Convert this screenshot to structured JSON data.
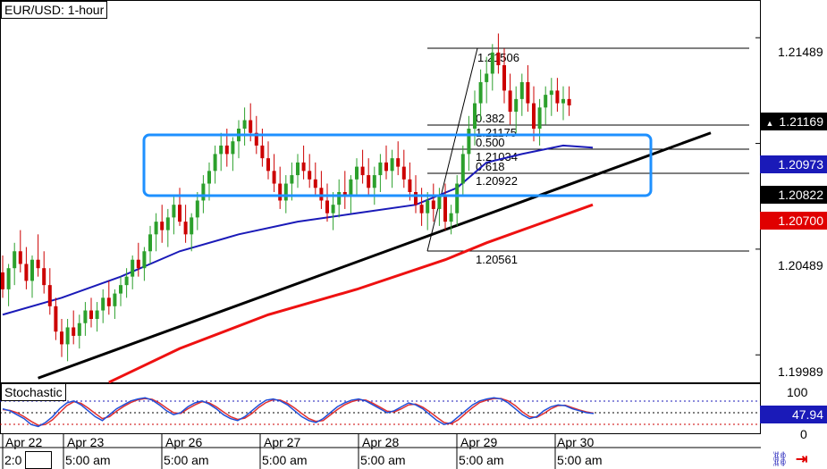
{
  "window_title": "EUR/USD: 1-hour",
  "indicator_label": "Stochastic",
  "colors": {
    "bull": "#2ca02c",
    "bear": "#cc0000",
    "ma_fast": "#1a1ab8",
    "ma_slow": "#ee1111",
    "trendline": "#000000",
    "box": "#1e90ff",
    "stoch_k": "#1f4fd8",
    "stoch_d": "#e03030",
    "tag_dark": "#000000",
    "tag_blue": "#1a1ab8",
    "tag_red": "#e00000"
  },
  "price_axis": {
    "labels": [
      "1.21489",
      "1.20489",
      "1.19989"
    ],
    "current_price": "1.21169",
    "ma_fast_price": "1.20973",
    "line_price": "1.20822",
    "ma_slow_price": "1.20700"
  },
  "fib_levels": {
    "high": "1.21506",
    "r382_label": "0.382",
    "r382_price": "1.21175",
    "r500_label": "0.500",
    "r500_price": "1.21034",
    "r618_label": "0.618",
    "r618_price": "1.20922",
    "low": "1.20561"
  },
  "stochastic_axis": {
    "top": "100",
    "current": "47.94",
    "bottom": "0"
  },
  "date_labels": [
    "Apr 22",
    "Apr 23",
    "Apr 26",
    "Apr 27",
    "Apr 28",
    "Apr 29",
    "Apr 30"
  ],
  "time_labels": [
    "2:0",
    "5:00 am",
    "5:00 am",
    "5:00 am",
    "5:00 am",
    "5:00 am",
    "5:00 am"
  ],
  "chart_data": {
    "type": "candlestick",
    "title": "EUR/USD: 1-hour",
    "yrange": [
      1.1986,
      1.2166
    ],
    "ohlc": [
      [
        1.2038,
        1.2046,
        1.2026,
        1.203
      ],
      [
        1.203,
        1.2042,
        1.2022,
        1.204
      ],
      [
        1.204,
        1.2052,
        1.2032,
        1.2048
      ],
      [
        1.2048,
        1.2058,
        1.2038,
        1.2042
      ],
      [
        1.2042,
        1.205,
        1.203,
        1.2034
      ],
      [
        1.2034,
        1.2046,
        1.2026,
        1.2044
      ],
      [
        1.2044,
        1.2056,
        1.2036,
        1.204
      ],
      [
        1.204,
        1.2048,
        1.2028,
        1.2032
      ],
      [
        1.2032,
        1.204,
        1.2018,
        1.2022
      ],
      [
        1.2022,
        1.2026,
        1.2006,
        1.201
      ],
      [
        1.201,
        1.2016,
        1.1998,
        1.2004
      ],
      [
        1.2004,
        1.2016,
        1.1996,
        1.2012
      ],
      [
        1.2012,
        1.202,
        1.2004,
        1.2008
      ],
      [
        1.2008,
        1.2018,
        1.2002,
        1.2014
      ],
      [
        1.2014,
        1.2024,
        1.2008,
        1.202
      ],
      [
        1.202,
        1.2026,
        1.2012,
        1.2016
      ],
      [
        1.2016,
        1.2024,
        1.201,
        1.202
      ],
      [
        1.202,
        1.203,
        1.2014,
        1.2026
      ],
      [
        1.2026,
        1.2034,
        1.2018,
        1.2022
      ],
      [
        1.2022,
        1.203,
        1.2016,
        1.2028
      ],
      [
        1.2028,
        1.2036,
        1.2022,
        1.2032
      ],
      [
        1.2032,
        1.204,
        1.2026,
        1.2036
      ],
      [
        1.2036,
        1.2046,
        1.203,
        1.2044
      ],
      [
        1.2044,
        1.2052,
        1.2036,
        1.204
      ],
      [
        1.204,
        1.205,
        1.2034,
        1.2048
      ],
      [
        1.2048,
        1.206,
        1.2042,
        1.2056
      ],
      [
        1.2056,
        1.2066,
        1.2048,
        1.2062
      ],
      [
        1.2062,
        1.207,
        1.2052,
        1.2058
      ],
      [
        1.2058,
        1.2068,
        1.205,
        1.2064
      ],
      [
        1.2064,
        1.2074,
        1.2056,
        1.207
      ],
      [
        1.207,
        1.2078,
        1.206,
        1.2062
      ],
      [
        1.2062,
        1.207,
        1.2052,
        1.2056
      ],
      [
        1.2056,
        1.2066,
        1.2048,
        1.2064
      ],
      [
        1.2064,
        1.2076,
        1.2058,
        1.2072
      ],
      [
        1.2072,
        1.2084,
        1.2066,
        1.208
      ],
      [
        1.208,
        1.209,
        1.2072,
        1.2086
      ],
      [
        1.2086,
        1.2098,
        1.208,
        1.2094
      ],
      [
        1.2094,
        1.2104,
        1.2086,
        1.2098
      ],
      [
        1.2098,
        1.2106,
        1.2088,
        1.2094
      ],
      [
        1.2094,
        1.2102,
        1.2086,
        1.21
      ],
      [
        1.21,
        1.211,
        1.2092,
        1.2106
      ],
      [
        1.2106,
        1.2116,
        1.2098,
        1.211
      ],
      [
        1.211,
        1.2118,
        1.21,
        1.2104
      ],
      [
        1.2104,
        1.2112,
        1.2094,
        1.2098
      ],
      [
        1.2098,
        1.2106,
        1.2088,
        1.2092
      ],
      [
        1.2092,
        1.21,
        1.2082,
        1.2086
      ],
      [
        1.2086,
        1.2094,
        1.2076,
        1.208
      ],
      [
        1.208,
        1.2088,
        1.2068,
        1.2072
      ],
      [
        1.2072,
        1.2084,
        1.2066,
        1.208
      ],
      [
        1.208,
        1.209,
        1.2072,
        1.2084
      ],
      [
        1.2084,
        1.2094,
        1.2078,
        1.209
      ],
      [
        1.209,
        1.2098,
        1.2082,
        1.2086
      ],
      [
        1.2086,
        1.2094,
        1.2078,
        1.2082
      ],
      [
        1.2082,
        1.209,
        1.2074,
        1.2078
      ],
      [
        1.2078,
        1.2086,
        1.2068,
        1.2072
      ],
      [
        1.2072,
        1.208,
        1.2062,
        1.2066
      ],
      [
        1.2066,
        1.2076,
        1.2058,
        1.207
      ],
      [
        1.207,
        1.2082,
        1.2064,
        1.2076
      ],
      [
        1.2076,
        1.2086,
        1.2068,
        1.2074
      ],
      [
        1.2074,
        1.2084,
        1.2066,
        1.2082
      ],
      [
        1.2082,
        1.2092,
        1.2074,
        1.2088
      ],
      [
        1.2088,
        1.2096,
        1.208,
        1.2084
      ],
      [
        1.2084,
        1.2092,
        1.2074,
        1.2078
      ],
      [
        1.2078,
        1.2088,
        1.207,
        1.2084
      ],
      [
        1.2084,
        1.2094,
        1.2076,
        1.209
      ],
      [
        1.209,
        1.2098,
        1.2082,
        1.2086
      ],
      [
        1.2086,
        1.2096,
        1.2078,
        1.2092
      ],
      [
        1.2092,
        1.21,
        1.2084,
        1.2088
      ],
      [
        1.2088,
        1.2096,
        1.2078,
        1.2082
      ],
      [
        1.2082,
        1.209,
        1.2072,
        1.2076
      ],
      [
        1.2076,
        1.2084,
        1.2066,
        1.207
      ],
      [
        1.207,
        1.2078,
        1.206,
        1.2066
      ],
      [
        1.2066,
        1.2076,
        1.2058,
        1.2072
      ],
      [
        1.2072,
        1.208,
        1.2062,
        1.2068
      ],
      [
        1.2068,
        1.2078,
        1.206,
        1.2074
      ],
      [
        1.2074,
        1.208,
        1.2058,
        1.2062
      ],
      [
        1.2062,
        1.207,
        1.2056,
        1.2066
      ],
      [
        1.2066,
        1.2084,
        1.206,
        1.208
      ],
      [
        1.208,
        1.2098,
        1.2074,
        1.2094
      ],
      [
        1.2094,
        1.2112,
        1.2086,
        1.2106
      ],
      [
        1.2106,
        1.2124,
        1.2098,
        1.2118
      ],
      [
        1.2118,
        1.2134,
        1.211,
        1.2128
      ],
      [
        1.2128,
        1.214,
        1.2118,
        1.2132
      ],
      [
        1.2132,
        1.2146,
        1.2124,
        1.2142
      ],
      [
        1.2142,
        1.2151,
        1.2132,
        1.2136
      ],
      [
        1.2136,
        1.2144,
        1.2118,
        1.2124
      ],
      [
        1.2124,
        1.2132,
        1.2108,
        1.2114
      ],
      [
        1.2114,
        1.2126,
        1.2104,
        1.212
      ],
      [
        1.212,
        1.2132,
        1.2112,
        1.2128
      ],
      [
        1.2128,
        1.2136,
        1.2114,
        1.2118
      ],
      [
        1.2118,
        1.2126,
        1.21,
        1.2106
      ],
      [
        1.2106,
        1.212,
        1.2098,
        1.2116
      ],
      [
        1.2116,
        1.2126,
        1.2108,
        1.2122
      ],
      [
        1.2122,
        1.213,
        1.2112,
        1.2124
      ],
      [
        1.2124,
        1.213,
        1.2114,
        1.2118
      ],
      [
        1.2118,
        1.2126,
        1.211,
        1.212
      ],
      [
        1.212,
        1.2126,
        1.2112,
        1.2117
      ]
    ],
    "ma_fast": {
      "x_index": [
        0,
        10,
        20,
        30,
        40,
        50,
        60,
        70,
        77,
        82,
        88,
        95,
        100
      ],
      "y": [
        1.2018,
        1.2026,
        1.2036,
        1.2048,
        1.2056,
        1.2062,
        1.2066,
        1.207,
        1.2078,
        1.209,
        1.2094,
        1.2098,
        1.2097
      ]
    },
    "ma_slow": {
      "x_index": [
        18,
        30,
        45,
        60,
        75,
        82,
        90,
        100
      ],
      "y": [
        1.1986,
        1.2002,
        1.2018,
        1.203,
        1.2044,
        1.2052,
        1.206,
        1.207
      ]
    },
    "trendline": {
      "x_index": [
        6,
        120
      ],
      "y": [
        1.1988,
        1.2104
      ]
    },
    "stochastic": {
      "k": [
        60,
        55,
        45,
        35,
        20,
        15,
        25,
        40,
        60,
        75,
        80,
        70,
        55,
        40,
        30,
        45,
        60,
        70,
        80,
        85,
        88,
        82,
        70,
        55,
        45,
        50,
        65,
        75,
        80,
        72,
        60,
        45,
        35,
        30,
        40,
        55,
        70,
        82,
        85,
        80,
        70,
        55,
        40,
        30,
        25,
        35,
        50,
        65,
        75,
        82,
        85,
        80,
        70,
        60,
        50,
        55,
        65,
        75,
        70,
        60,
        45,
        30,
        20,
        25,
        40,
        55,
        70,
        80,
        85,
        88,
        85,
        75,
        60,
        45,
        35,
        40,
        55,
        65,
        70,
        68,
        60,
        55,
        50,
        48
      ],
      "d": [
        58,
        56,
        50,
        40,
        28,
        18,
        20,
        32,
        50,
        68,
        78,
        74,
        62,
        48,
        35,
        40,
        54,
        66,
        76,
        83,
        86,
        84,
        75,
        62,
        50,
        48,
        60,
        70,
        78,
        75,
        65,
        52,
        40,
        33,
        36,
        48,
        64,
        76,
        83,
        82,
        74,
        62,
        48,
        35,
        28,
        30,
        44,
        58,
        70,
        78,
        83,
        82,
        74,
        64,
        54,
        52,
        60,
        70,
        72,
        64,
        52,
        38,
        25,
        22,
        32,
        48,
        63,
        76,
        82,
        86,
        86,
        80,
        68,
        52,
        40,
        38,
        48,
        60,
        68,
        69,
        63,
        57,
        52,
        49
      ]
    }
  }
}
